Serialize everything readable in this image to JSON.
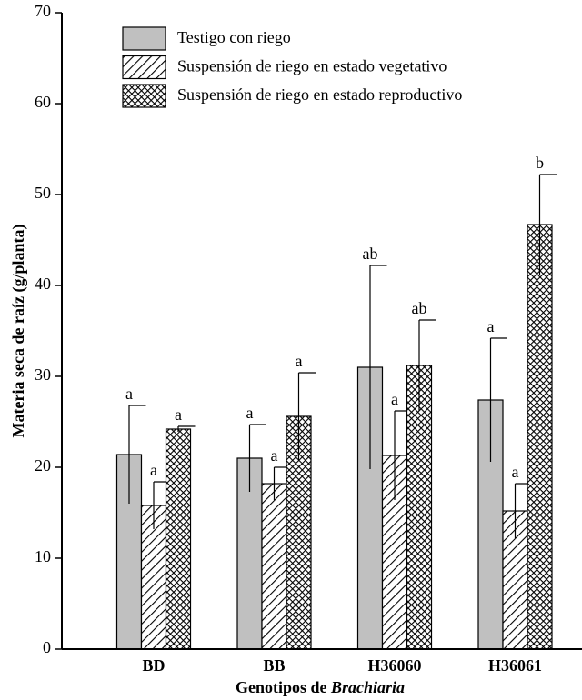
{
  "chart_data": {
    "type": "bar",
    "ylabel": "Materia seca de raíz (g/planta)",
    "xlabel": [
      "Genotipos de ",
      "Brachiaria"
    ],
    "categories": [
      "BD",
      "BB",
      "H36060",
      "H36061"
    ],
    "series": [
      {
        "name": "Testigo con riego",
        "color": "#c0c0c0",
        "pattern": "solid",
        "values": [
          21.4,
          21.0,
          31.0,
          27.4
        ],
        "errors": [
          5.4,
          3.7,
          11.2,
          6.8
        ],
        "labels": [
          "a",
          "a",
          "ab",
          "a"
        ]
      },
      {
        "name": "Suspensión de riego en estado vegetativo",
        "color": "#ffffff",
        "pattern": "hatch",
        "values": [
          15.8,
          18.2,
          21.3,
          15.2
        ],
        "errors": [
          2.6,
          1.8,
          4.9,
          3.0
        ],
        "labels": [
          "a",
          "a",
          "a",
          "a"
        ]
      },
      {
        "name": "Suspensión de riego en estado reproductivo",
        "color": "#ffffff",
        "pattern": "crosshatch",
        "values": [
          24.2,
          25.6,
          31.2,
          46.7
        ],
        "errors": [
          0.3,
          4.8,
          5.0,
          5.5
        ],
        "labels": [
          "a",
          "a",
          "ab",
          "b"
        ]
      }
    ],
    "ylim": [
      0,
      70
    ],
    "yticks": [
      0,
      10,
      20,
      30,
      40,
      50,
      60,
      70
    ],
    "legend": "upper left"
  }
}
